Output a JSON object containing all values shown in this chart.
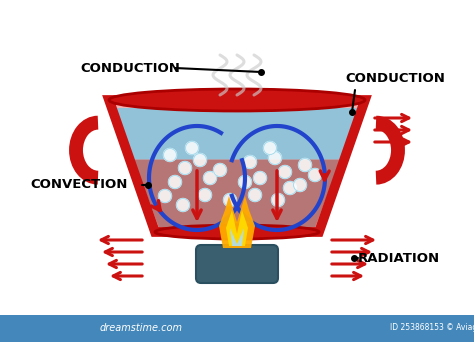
{
  "background_color": "#ffffff",
  "pot_body_color": "#cc1111",
  "pot_fill_top": "#90c8e0",
  "pot_fill_bottom": "#b87070",
  "rim_color": "#cc1111",
  "handle_color": "#cc1111",
  "conv_loop_color": "#2244cc",
  "conv_arrow_color": "#cc1111",
  "arrow_color": "#cc1111",
  "label_color": "#000000",
  "flame_outer": "#ffaa00",
  "flame_mid": "#ff6600",
  "flame_inner": "#aaddff",
  "burner_color": "#3a6070",
  "steam_color": "#cccccc",
  "bubble_color": "#ffffff",
  "dreamstime_bar": "#4488bb",
  "labels": {
    "conduction_top": "CONDUCTION",
    "conduction_right": "CONDUCTION",
    "convection": "CONVECTION",
    "radiation": "RADIATION"
  }
}
